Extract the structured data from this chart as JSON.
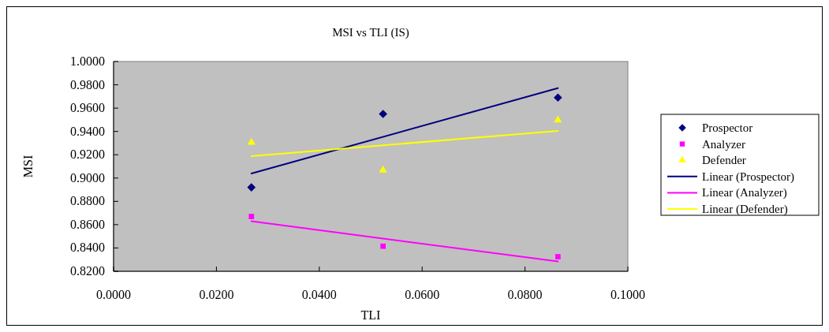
{
  "chart_data": {
    "type": "scatter",
    "title": "MSI vs TLI (IS)",
    "xlabel": "TLI",
    "ylabel": "MSI",
    "xlim": [
      0,
      0.1
    ],
    "xticks": [
      {
        "value": 0,
        "label": "0.0000"
      },
      {
        "value": 0.02,
        "label": "0.0200"
      },
      {
        "value": 0.04,
        "label": "0.0400"
      },
      {
        "value": 0.06,
        "label": "0.0600"
      },
      {
        "value": 0.08,
        "label": "0.0800"
      },
      {
        "value": 0.1,
        "label": "0.1000"
      }
    ],
    "ylim": [
      0.82,
      1
    ],
    "yticks": [
      {
        "value": 0.82,
        "label": "0.8200"
      },
      {
        "value": 0.84,
        "label": "0.8400"
      },
      {
        "value": 0.86,
        "label": "0.8600"
      },
      {
        "value": 0.88,
        "label": "0.8800"
      },
      {
        "value": 0.9,
        "label": "0.9000"
      },
      {
        "value": 0.92,
        "label": "0.9200"
      },
      {
        "value": 0.94,
        "label": "0.9400"
      },
      {
        "value": 0.96,
        "label": "0.9600"
      },
      {
        "value": 0.98,
        "label": "0.9800"
      },
      {
        "value": 1,
        "label": "1.0000"
      }
    ],
    "grid": false,
    "legend": "right",
    "series": [
      {
        "name": "Prospector",
        "marker": "diamond",
        "color": "#000080",
        "x": [
          0.0268,
          0.0524,
          0.0864
        ],
        "values": [
          0.892,
          0.955,
          0.969
        ]
      },
      {
        "name": "Analyzer",
        "marker": "square",
        "color": "#ff00ff",
        "x": [
          0.0268,
          0.0524,
          0.0864
        ],
        "values": [
          0.867,
          0.8415,
          0.8325
        ]
      },
      {
        "name": "Defender",
        "marker": "triangle",
        "color": "#ffff00",
        "x": [
          0.0268,
          0.0524,
          0.0864
        ],
        "values": [
          0.9306,
          0.9067,
          0.9497
        ]
      },
      {
        "name": "Linear (Prospector)",
        "type": "line",
        "line_style": "solid",
        "color": "#000080",
        "x": [
          0.0268,
          0.0864
        ],
        "values": [
          0.9039,
          0.9772
        ]
      },
      {
        "name": "Linear (Analyzer)",
        "type": "line",
        "line_style": "solid",
        "color": "#ff00ff",
        "x": [
          0.0268,
          0.0864
        ],
        "values": [
          0.8629,
          0.8284
        ]
      },
      {
        "name": "Linear (Defender)",
        "type": "line",
        "line_style": "solid",
        "color": "#ffff00",
        "x": [
          0.0268,
          0.0864
        ],
        "values": [
          0.9188,
          0.9405
        ]
      }
    ]
  }
}
